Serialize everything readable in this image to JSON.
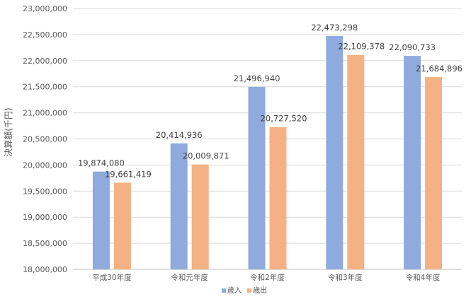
{
  "chart_data": {
    "type": "bar",
    "title": "",
    "xlabel": "",
    "ylabel": "決算額(千円)",
    "ylim": [
      18000000,
      23000000
    ],
    "ytick_step": 500000,
    "grid": true,
    "legend_position": "bottom",
    "categories": [
      "平成30年度",
      "令和元年度",
      "令和2年度",
      "令和3年度",
      "令和4年度"
    ],
    "series": [
      {
        "name": "歳入",
        "color": "#8faadc",
        "values": [
          19874080,
          20414936,
          21496940,
          22473298,
          22090733
        ]
      },
      {
        "name": "歳出",
        "color": "#f4b183",
        "values": [
          19661419,
          20009871,
          20727520,
          22109378,
          21684896
        ]
      }
    ]
  }
}
